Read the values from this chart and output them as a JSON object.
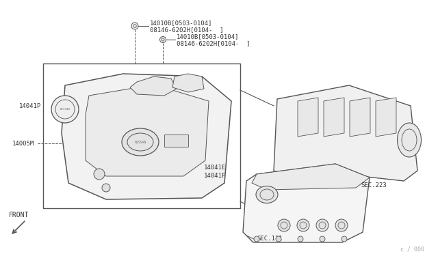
{
  "bg_color": "#ffffff",
  "line_color": "#555555",
  "text_color": "#333333",
  "fig_width": 6.4,
  "fig_height": 3.72,
  "watermark": "c / 000",
  "labels": {
    "14010B_1_line1": "14010B[0503-0104]",
    "14010B_1_line2": "08146-6202H[0104-  ]",
    "14010B_2_line1": "14010B[0503-0104]",
    "14010B_2_line2": "08146-6202H[0104-  ]",
    "14041P": "14041P",
    "14005M": "14005M",
    "14041E": "14041E",
    "14041F": "14041F",
    "SEC223": "SEC.223",
    "SEC111": "SEC.111",
    "FRONT": "FRONT"
  }
}
